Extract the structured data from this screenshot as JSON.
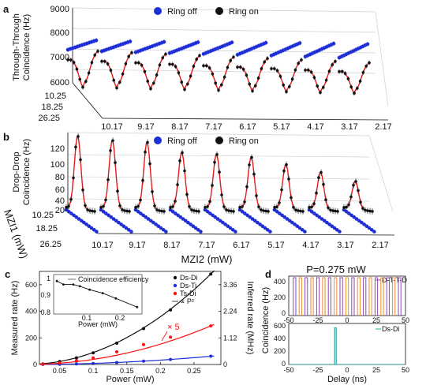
{
  "colors": {
    "ring_off": "#1f2fd6",
    "ring_on": "#111111",
    "fit": "#e31a1c",
    "ds_ti": "#1f2fd6",
    "ts_di": "#ff1010",
    "d_t_t_d_a": "#8a4bb0",
    "d_t_t_d_b": "#ef8a2a",
    "ds_di_trace": "#2aa3a3"
  },
  "panels": {
    "a": {
      "label": "a",
      "ylabel_line1": "Through-Through",
      "ylabel_line2": "Coincidence (Hz)",
      "yticks": [
        "9000",
        "8000",
        "7000",
        "6000"
      ],
      "legend": [
        "Ring off",
        "Ring on"
      ],
      "mzi1_ticks": [
        "10.25",
        "18.25",
        "26.25"
      ],
      "mzi2_ticks": [
        "10.17",
        "9.17",
        "8.17",
        "7.17",
        "6.17",
        "5.17",
        "4.17",
        "3.17",
        "2.17"
      ]
    },
    "b": {
      "label": "b",
      "ylabel_line1": "Drop-Drop",
      "ylabel_line2": "Coincidence (Hz)",
      "yticks": [
        "120",
        "100",
        "80",
        "60",
        "40",
        "20",
        "0"
      ],
      "legend": [
        "Ring off",
        "Ring on"
      ],
      "mzi1_ticks": [
        "10.25",
        "18.25",
        "26.25"
      ],
      "mzi2_ticks": [
        "10.17",
        "9.17",
        "8.17",
        "7.17",
        "6.17",
        "5.17",
        "4.17",
        "3.17",
        "2.17"
      ],
      "xlabel": "MZI2 (mW)",
      "zlabel": "MZI1 (mW)"
    },
    "c": {
      "label": "c",
      "ylabel": "Measured rate (Hz)",
      "y2label": "Inferred rate (MHz)",
      "xlabel": "Power (mW)",
      "xticks": [
        "0.05",
        "0.1",
        "0.15",
        "0.2",
        "0.25"
      ],
      "yticks": [
        "0",
        "200",
        "400",
        "600"
      ],
      "y2ticks": [
        "0",
        "1.12",
        "2.24",
        "3.36"
      ],
      "legend": [
        "Ds-Di",
        "Ds-Ti",
        "Ts-Di",
        "∝ P²"
      ],
      "annotation": "× 5",
      "inset": {
        "legend": "Coincidence efficiency",
        "xlabel": "Power (mW)",
        "xticks": [
          "0.1",
          "0.2"
        ],
        "yticks": [
          "1",
          "0.9",
          "0.8"
        ]
      }
    },
    "d": {
      "label": "d",
      "title": "P=0.275 mW",
      "ylabel": "Coincidence (Hz)",
      "xlabel": "Delay (ns)",
      "xticks": [
        "-50",
        "-25",
        "0",
        "25",
        "50"
      ],
      "top_yticks": [
        "400",
        "200",
        "0"
      ],
      "bottom_yticks": [
        "600",
        "400",
        "200",
        "0"
      ],
      "top_legend": "D-T-T-D",
      "bottom_legend": "Ds-Di"
    }
  },
  "chart_data": [
    {
      "panel": "a",
      "type": "scatter",
      "title": "",
      "zlim": [
        6000,
        9000
      ],
      "mzi2": [
        10.17,
        9.17,
        8.17,
        7.17,
        6.17,
        5.17,
        4.17,
        3.17,
        2.17
      ],
      "mzi1": [
        10.25,
        18.25,
        26.25
      ],
      "series": [
        {
          "name": "Ring off",
          "values": [
            8020,
            7980,
            7960,
            7950,
            7940,
            7930,
            7920,
            7900,
            7880
          ]
        },
        {
          "name": "Ring on",
          "values": [
            6150,
            6140,
            6130,
            6120,
            6110,
            6100,
            6090,
            6080,
            6070
          ]
        }
      ]
    },
    {
      "panel": "b",
      "type": "scatter",
      "title": "",
      "zlim": [
        0,
        130
      ],
      "mzi2": [
        10.17,
        9.17,
        8.17,
        7.17,
        6.17,
        5.17,
        4.17,
        3.17,
        2.17
      ],
      "mzi1": [
        10.25,
        18.25,
        26.25
      ],
      "series": [
        {
          "name": "Ring off",
          "values": [
            2,
            2,
            2,
            2,
            2,
            2,
            2,
            2,
            2
          ]
        },
        {
          "name": "Ring on",
          "values": [
            125,
            118,
            115,
            98,
            95,
            90,
            78,
            65,
            50
          ]
        }
      ]
    },
    {
      "panel": "c",
      "type": "line",
      "title": "",
      "xlabel": "Power (mW)",
      "ylabel": "Measured rate (Hz)",
      "xlim": [
        0.02,
        0.29
      ],
      "ylim": [
        0,
        700
      ],
      "y2lim": [
        0,
        3.92
      ],
      "x": [
        0.025,
        0.05,
        0.075,
        0.1,
        0.135,
        0.175,
        0.215,
        0.275
      ],
      "series": [
        {
          "name": "Ds-Di",
          "values": [
            5,
            22,
            50,
            88,
            160,
            270,
            410,
            680
          ]
        },
        {
          "name": "Ds-Ti",
          "values": [
            0.5,
            2,
            4.5,
            8,
            15,
            25,
            38,
            62
          ]
        },
        {
          "name": "Ts-Di",
          "values": [
            3,
            12,
            28,
            50,
            95,
            150,
            205,
            290
          ]
        }
      ],
      "inset": {
        "type": "line",
        "series": [
          {
            "name": "Coincidence efficiency",
            "x": [
              0.03,
              0.05,
              0.08,
              0.1,
              0.13,
              0.17,
              0.21,
              0.275
            ],
            "values": [
              0.99,
              0.97,
              0.97,
              0.96,
              0.94,
              0.92,
              0.89,
              0.84
            ]
          }
        ],
        "xlim": [
          0.02,
          0.29
        ],
        "ylim": [
          0.8,
          1.0
        ]
      }
    },
    {
      "panel": "d-top",
      "type": "line",
      "title": "P=0.275 mW",
      "xlim": [
        -50,
        50
      ],
      "ylim": [
        0,
        500
      ],
      "peaks": [
        -45,
        -40,
        -35,
        -30,
        -25,
        -20,
        -15,
        -10,
        -5,
        0,
        5,
        10,
        15,
        20,
        25,
        30,
        35,
        40,
        45
      ],
      "peak_height": 480
    },
    {
      "panel": "d-bottom",
      "type": "line",
      "xlim": [
        -50,
        50
      ],
      "ylim": [
        0,
        650
      ],
      "peaks": [
        -10
      ],
      "peak_height": 580
    }
  ]
}
